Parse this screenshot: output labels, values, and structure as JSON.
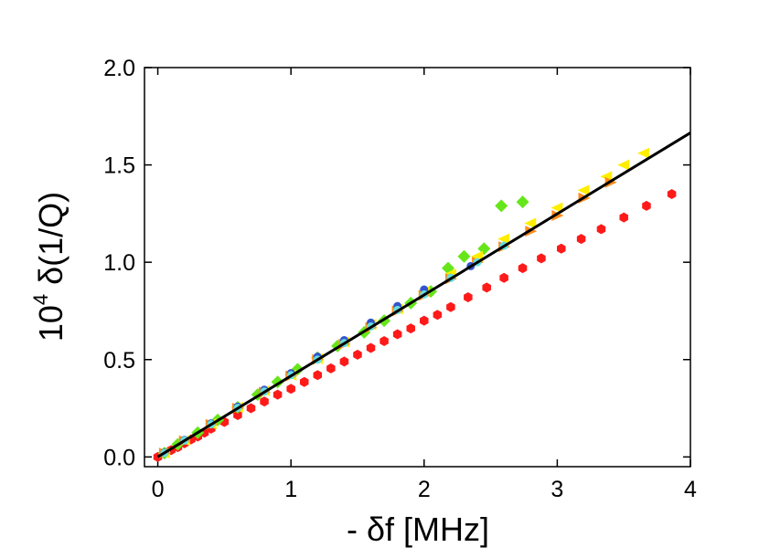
{
  "chart_data": {
    "type": "scatter",
    "title": "",
    "xlabel": "- δf [MHz]",
    "ylabel_prefix": "10",
    "ylabel_sup": "4",
    "ylabel_main": " δ(1/Q)",
    "xlim": [
      -0.1,
      4.0
    ],
    "ylim": [
      -0.05,
      2.0
    ],
    "x_ticks": [
      0,
      1,
      2,
      3,
      4
    ],
    "x_tick_labels": [
      "0",
      "1",
      "2",
      "3",
      "4"
    ],
    "y_ticks": [
      0.0,
      0.5,
      1.0,
      1.5,
      2.0
    ],
    "y_tick_labels": [
      "0.0",
      "0.5",
      "1.0",
      "1.5",
      "2.0"
    ],
    "grid": false,
    "fit_line": {
      "color": "#000000",
      "x": [
        0.0,
        4.0
      ],
      "y": [
        0.0,
        1.665
      ]
    },
    "series": [
      {
        "marker": "hexagon",
        "color": "#ff1a1a",
        "x": [
          0.0,
          0.05,
          0.1,
          0.15,
          0.2,
          0.25,
          0.3,
          0.35,
          0.4,
          0.5,
          0.6,
          0.7,
          0.8,
          0.9,
          1.0,
          1.1,
          1.2,
          1.3,
          1.4,
          1.5,
          1.6,
          1.7,
          1.8,
          1.9,
          2.0,
          2.1,
          2.2,
          2.33,
          2.47,
          2.6,
          2.74,
          2.88,
          3.03,
          3.18,
          3.33,
          3.5,
          3.67,
          3.86
        ],
        "y": [
          0.0,
          0.02,
          0.035,
          0.05,
          0.07,
          0.09,
          0.105,
          0.125,
          0.145,
          0.18,
          0.215,
          0.25,
          0.285,
          0.32,
          0.35,
          0.385,
          0.42,
          0.455,
          0.49,
          0.525,
          0.56,
          0.595,
          0.63,
          0.66,
          0.7,
          0.73,
          0.77,
          0.82,
          0.87,
          0.92,
          0.97,
          1.02,
          1.07,
          1.12,
          1.17,
          1.23,
          1.29,
          1.35
        ]
      },
      {
        "marker": "diamond",
        "color": "#66e61a",
        "x": [
          0.05,
          0.15,
          0.3,
          0.45,
          0.6,
          0.75,
          0.9,
          1.05,
          1.2,
          1.35,
          1.55,
          1.7,
          1.9,
          2.05,
          2.18,
          2.3,
          2.45,
          2.58,
          2.74
        ],
        "y": [
          0.02,
          0.065,
          0.125,
          0.19,
          0.255,
          0.32,
          0.385,
          0.45,
          0.51,
          0.57,
          0.64,
          0.7,
          0.79,
          0.85,
          0.97,
          1.03,
          1.07,
          1.29,
          1.31
        ]
      },
      {
        "marker": "triangle-left",
        "color": "#ffee00",
        "x": [
          0.05,
          0.2,
          0.4,
          0.6,
          0.8,
          1.0,
          1.2,
          1.4,
          1.6,
          1.8,
          2.0,
          2.2,
          2.4,
          2.6,
          2.8,
          3.0,
          3.2,
          3.37,
          3.5,
          3.65
        ],
        "y": [
          0.02,
          0.085,
          0.17,
          0.255,
          0.34,
          0.42,
          0.505,
          0.59,
          0.68,
          0.76,
          0.85,
          0.94,
          1.03,
          1.12,
          1.2,
          1.28,
          1.37,
          1.44,
          1.5,
          1.56
        ]
      },
      {
        "marker": "triangle-right",
        "color": "#ff8c1a",
        "x": [
          0.05,
          0.2,
          0.4,
          0.6,
          0.8,
          1.0,
          1.2,
          1.4,
          1.6,
          1.8,
          2.0,
          2.2,
          2.4,
          2.6,
          2.8,
          3.0,
          3.2,
          3.4
        ],
        "y": [
          0.02,
          0.083,
          0.167,
          0.25,
          0.333,
          0.416,
          0.5,
          0.58,
          0.665,
          0.75,
          0.83,
          0.915,
          1.0,
          1.08,
          1.16,
          1.24,
          1.33,
          1.41
        ]
      },
      {
        "marker": "circle",
        "color": "#3355cc",
        "x": [
          0.05,
          0.2,
          0.4,
          0.6,
          0.8,
          1.0,
          1.2,
          1.4,
          1.6,
          1.8,
          2.0,
          2.2,
          2.35
        ],
        "y": [
          0.022,
          0.087,
          0.172,
          0.258,
          0.345,
          0.43,
          0.515,
          0.6,
          0.69,
          0.775,
          0.86,
          0.92,
          0.98
        ]
      },
      {
        "marker": "circle",
        "color": "#66dddd",
        "x": [
          0.05,
          0.2,
          0.4,
          0.6,
          0.8,
          1.0,
          1.2,
          1.4,
          1.6,
          1.8,
          2.0,
          2.2,
          2.4,
          2.6
        ],
        "y": [
          0.02,
          0.084,
          0.168,
          0.252,
          0.336,
          0.42,
          0.5,
          0.585,
          0.67,
          0.755,
          0.835,
          0.92,
          1.0,
          1.085
        ]
      }
    ]
  }
}
